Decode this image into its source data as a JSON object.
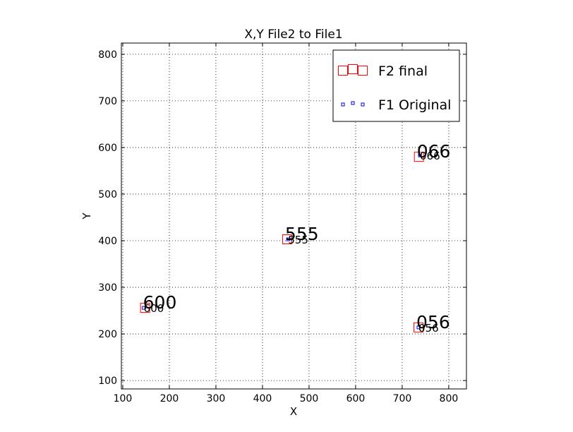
{
  "chart_data": {
    "type": "scatter",
    "title": "X,Y File2 to File1",
    "x_label": "X",
    "y_label": "Y",
    "xlim": [
      97,
      838
    ],
    "ylim": [
      82,
      824
    ],
    "xticks": [
      100,
      200,
      300,
      400,
      500,
      600,
      700,
      800
    ],
    "yticks": [
      100,
      200,
      300,
      400,
      500,
      600,
      700,
      800
    ],
    "grid": true,
    "legend": "upper right",
    "series": [
      {
        "name": "F2 final",
        "color": "#ff0000",
        "marker_size": "large",
        "x": [
          148,
          453,
          736,
          735
        ],
        "values": [
          256,
          403,
          580,
          214
        ],
        "labels": [
          "600",
          "555",
          "066",
          "056"
        ]
      },
      {
        "name": "F1 Original",
        "color": "#0000ff",
        "marker_size": "small",
        "x": [
          145,
          455,
          738,
          735
        ],
        "values": [
          256,
          403,
          583,
          214
        ],
        "labels": [
          "600",
          "555",
          "066",
          "056"
        ]
      }
    ]
  }
}
